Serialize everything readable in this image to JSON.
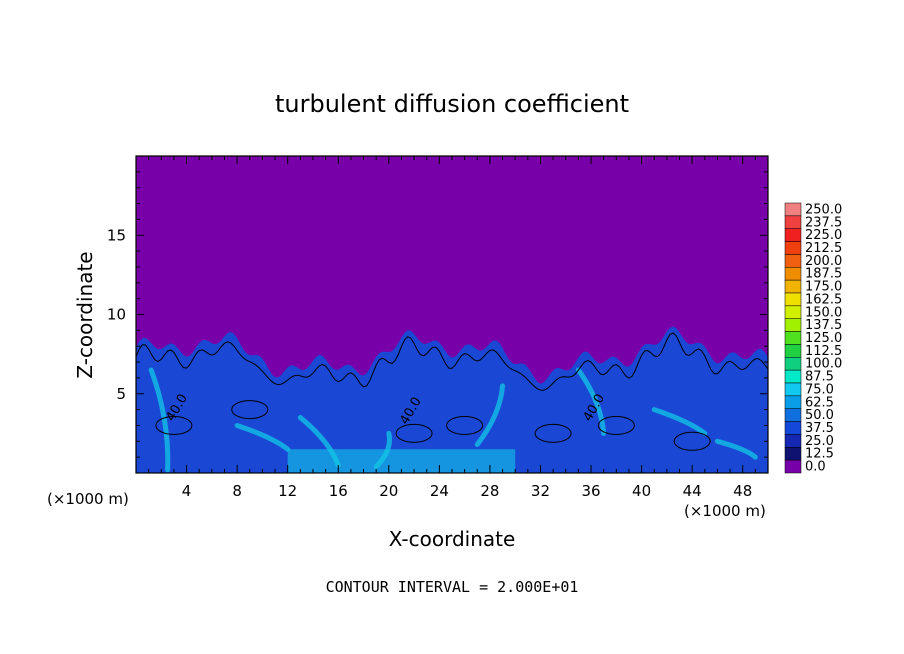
{
  "chart_data": {
    "type": "heatmap",
    "title": "turbulent diffusion coefficient",
    "xlabel": "X-coordinate",
    "ylabel": "Z-coordinate",
    "x_unit": "(×1000 m)",
    "x_unit_right": "(×1000 m)",
    "footer": "CONTOUR INTERVAL = 2.000E+01",
    "x_ticks": [
      "4",
      "8",
      "12",
      "16",
      "20",
      "24",
      "28",
      "32",
      "36",
      "40",
      "44",
      "48"
    ],
    "y_ticks": [
      "5",
      "10",
      "15"
    ],
    "xlim": [
      0,
      50
    ],
    "ylim": [
      0,
      20
    ],
    "contour_labels": [
      {
        "text": "40.0",
        "x": 3.5,
        "z": 4.0
      },
      {
        "text": "40.0",
        "x": 22.0,
        "z": 3.8
      },
      {
        "text": "40.0",
        "x": 36.5,
        "z": 4.0
      }
    ],
    "colorbar": {
      "labels": [
        "250.0",
        "237.5",
        "225.0",
        "212.5",
        "200.0",
        "187.5",
        "175.0",
        "162.5",
        "150.0",
        "137.5",
        "125.0",
        "112.5",
        "100.0",
        "87.5",
        "75.0",
        "62.5",
        "50.0",
        "37.5",
        "25.0",
        "12.5",
        "0.0"
      ],
      "colors": [
        "#f08080",
        "#f04040",
        "#f02020",
        "#f04010",
        "#f06010",
        "#f08c00",
        "#f0b400",
        "#f0e000",
        "#d0f000",
        "#a0f000",
        "#50e020",
        "#20d040",
        "#10d080",
        "#00e8c8",
        "#10c8f0",
        "#0a9ee8",
        "#1070e0",
        "#1448d8",
        "#1428b4",
        "#0f1270",
        "#7800a8"
      ]
    },
    "colors": {
      "background": "#7800a8",
      "turbulent_base": "#1a48d4",
      "high_value": "#12c8e6"
    }
  }
}
